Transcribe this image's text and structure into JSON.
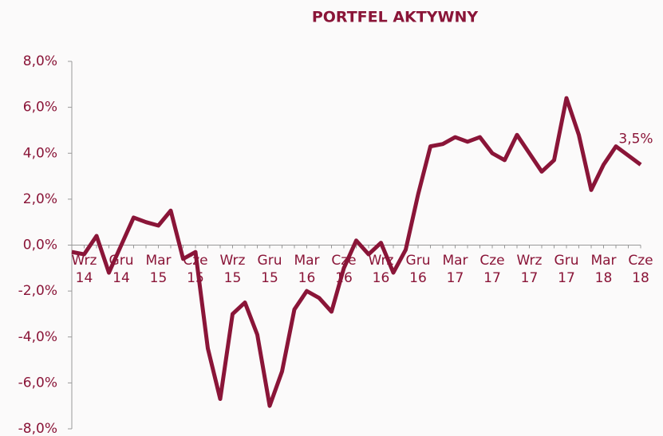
{
  "chart_data": {
    "type": "line",
    "title": "PORTFEL AKTYWNY",
    "color": "#8a1538",
    "categories": [
      null,
      "Wrz 14",
      null,
      null,
      "Gru 14",
      null,
      null,
      "Mar 15",
      null,
      null,
      "Cze 15",
      null,
      null,
      "Wrz 15",
      null,
      null,
      "Gru 15",
      null,
      null,
      "Mar 16",
      null,
      null,
      "Cze 16",
      null,
      null,
      "Wrz 16",
      null,
      null,
      "Gru 16",
      null,
      null,
      "Mar 17",
      null,
      null,
      "Cze 17",
      null,
      null,
      "Wrz 17",
      null,
      null,
      "Gru 17",
      null,
      null,
      "Mar 18",
      null,
      null,
      "Cze 18"
    ],
    "values": [
      -0.3,
      -0.4,
      0.4,
      -1.2,
      0.0,
      1.2,
      1.0,
      0.85,
      1.5,
      -0.6,
      -0.3,
      -4.5,
      -6.7,
      -3.0,
      -2.5,
      -3.9,
      -7.0,
      -5.5,
      -2.8,
      -2.0,
      -2.3,
      -2.9,
      -1.0,
      0.2,
      -0.4,
      0.1,
      -1.2,
      -0.2,
      2.2,
      4.3,
      4.4,
      4.7,
      4.5,
      4.7,
      4.0,
      3.7,
      4.8,
      4.0,
      3.2,
      3.7,
      6.4,
      4.8,
      2.4,
      3.5,
      4.3,
      3.9,
      3.5
    ],
    "value_labels": [
      null,
      null,
      null,
      null,
      null,
      null,
      null,
      null,
      null,
      null,
      null,
      null,
      null,
      null,
      null,
      null,
      null,
      null,
      null,
      null,
      null,
      null,
      null,
      null,
      null,
      null,
      null,
      null,
      null,
      null,
      null,
      null,
      null,
      null,
      null,
      null,
      null,
      null,
      null,
      null,
      null,
      null,
      null,
      null,
      null,
      null,
      "3,5%"
    ],
    "ylim": [
      -8,
      8
    ],
    "yticks": [
      {
        "value": -8,
        "label": "-8,0%"
      },
      {
        "value": -6,
        "label": "-6,0%"
      },
      {
        "value": -4,
        "label": "-4,0%"
      },
      {
        "value": -2,
        "label": "-2,0%"
      },
      {
        "value": 0,
        "label": "0,0%"
      },
      {
        "value": 2,
        "label": "2,0%"
      },
      {
        "value": 4,
        "label": "4,0%"
      },
      {
        "value": 6,
        "label": "6,0%"
      },
      {
        "value": 8,
        "label": "8,0%"
      }
    ]
  }
}
